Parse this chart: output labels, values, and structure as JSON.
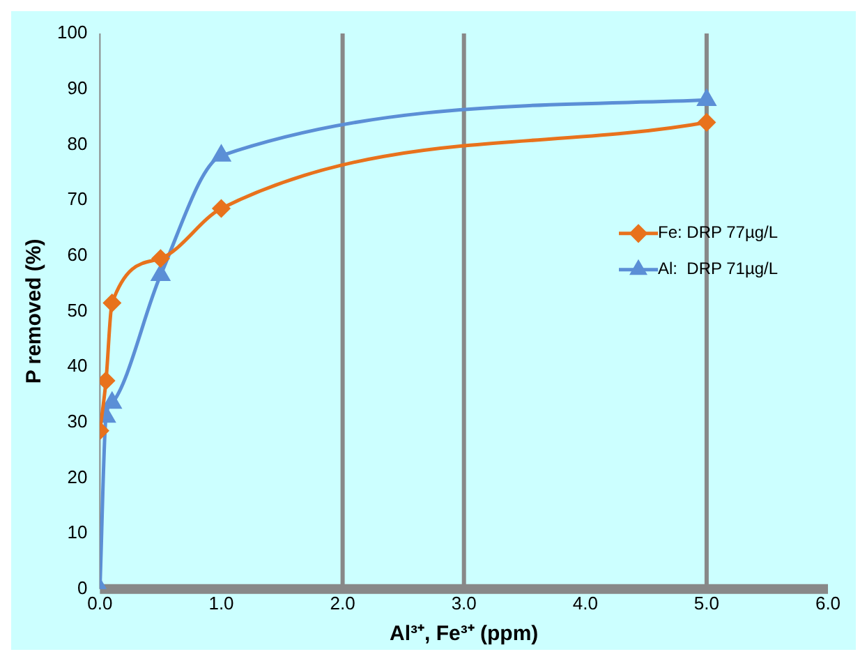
{
  "chart_data": {
    "type": "line",
    "xlabel": "Al³⁺, Fe³⁺ (ppm)",
    "ylabel": "P removed (%)",
    "series": [
      {
        "name": "Fe: DRP 77µg/L",
        "color": "#e8721c",
        "marker": "diamond",
        "x": [
          0,
          0.05,
          0.1,
          0.5,
          1.0,
          5.0
        ],
        "values": [
          28.5,
          37.5,
          51.5,
          59.5,
          68.5,
          84
        ]
      },
      {
        "name": "Al:  DRP 71µg/L",
        "color": "#5b8fd6",
        "marker": "triangle",
        "x": [
          0,
          0.05,
          0.1,
          0.5,
          1.0,
          5.0
        ],
        "values": [
          0,
          31,
          33.5,
          56.5,
          78,
          88
        ]
      }
    ],
    "xlim": [
      0,
      6
    ],
    "xticks": [
      {
        "value": 0,
        "label": "0.0"
      },
      {
        "value": 1,
        "label": "1.0"
      },
      {
        "value": 2,
        "label": "2.0"
      },
      {
        "value": 3,
        "label": "3.0"
      },
      {
        "value": 4,
        "label": "4.0"
      },
      {
        "value": 5,
        "label": "5.0"
      },
      {
        "value": 6,
        "label": "6.0"
      }
    ],
    "ylim": [
      0,
      100
    ],
    "yticks": [
      0,
      10,
      20,
      30,
      40,
      50,
      60,
      70,
      80,
      90,
      100
    ],
    "ref_lines": [
      {
        "axis": "x",
        "value": 2,
        "color": "#888888"
      },
      {
        "axis": "x",
        "value": 3,
        "color": "#888888"
      },
      {
        "axis": "x",
        "value": 5,
        "color": "#888888"
      }
    ],
    "grid": false,
    "legend": "right",
    "line_style": "solid"
  }
}
